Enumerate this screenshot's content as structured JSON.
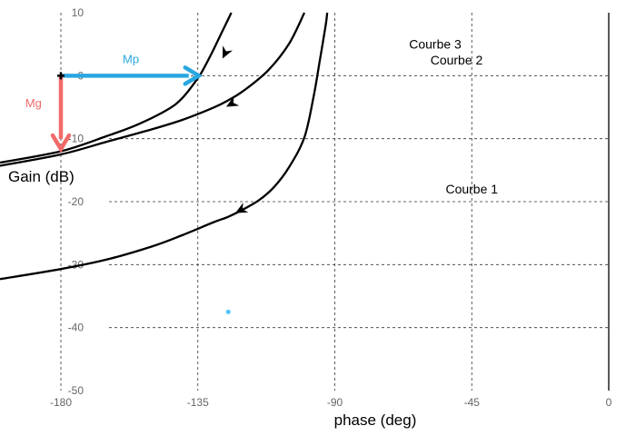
{
  "chart_data": {
    "type": "line",
    "title": "",
    "xlabel": "phase (deg)",
    "ylabel": "Gain (dB)",
    "xlim": [
      -200,
      0
    ],
    "ylim": [
      -50,
      10
    ],
    "x_ticks": [
      -180,
      -135,
      -90,
      -45,
      0
    ],
    "x_tick_labels": [
      "-180",
      "-135",
      "-90",
      "-45",
      "0"
    ],
    "y_ticks": [
      10,
      0,
      -10,
      -20,
      -30,
      -40,
      -50
    ],
    "y_tick_labels": [
      "10",
      "0",
      "-10",
      "-20",
      "-30",
      "-40",
      "-50"
    ],
    "grid": "dashed",
    "series": [
      {
        "name": "Courbe 1",
        "label_at": [
          -45,
          -18
        ],
        "color": "#000000",
        "arrow_at": [
          -122,
          -21.7
        ],
        "points": [
          [
            -200,
            -32.3
          ],
          [
            -180,
            -30.7
          ],
          [
            -165,
            -29.2
          ],
          [
            -150,
            -27.1
          ],
          [
            -140,
            -25.3
          ],
          [
            -130,
            -23.3
          ],
          [
            -125,
            -22.4
          ],
          [
            -120,
            -21.2
          ],
          [
            -115,
            -19.8
          ],
          [
            -110,
            -17.7
          ],
          [
            -105,
            -14.5
          ],
          [
            -100,
            -9.8
          ],
          [
            -97,
            -3.4
          ],
          [
            -95,
            2.2
          ],
          [
            -93,
            8.0
          ],
          [
            -92.5,
            10
          ]
        ]
      },
      {
        "name": "Courbe 2",
        "label_at": [
          -50,
          2.5
        ],
        "color": "#000000",
        "arrow_at": [
          -125,
          -4.8
        ],
        "points": [
          [
            -200,
            -14.3
          ],
          [
            -180,
            -12.5
          ],
          [
            -165,
            -10.5
          ],
          [
            -150,
            -8.5
          ],
          [
            -140,
            -7.0
          ],
          [
            -130,
            -5.1
          ],
          [
            -125,
            -3.9
          ],
          [
            -120,
            -2.4
          ],
          [
            -112,
            0.8
          ],
          [
            -105,
            5.1
          ],
          [
            -100,
            10
          ]
        ]
      },
      {
        "name": "Courbe 3",
        "label_at": [
          -57,
          5
        ],
        "color": "#000000",
        "arrow_at": [
          -127,
          3.2
        ],
        "points": [
          [
            -200,
            -13.8
          ],
          [
            -180,
            -12.0
          ],
          [
            -165,
            -9.6
          ],
          [
            -155,
            -7.8
          ],
          [
            -145,
            -5.4
          ],
          [
            -140,
            -3.5
          ],
          [
            -135,
            -0.4
          ],
          [
            -133,
            1.2
          ],
          [
            -130,
            4.0
          ],
          [
            -127,
            7.0
          ],
          [
            -124,
            10
          ]
        ]
      }
    ],
    "annotations": [
      {
        "name": "Mp",
        "color": "#29a7e1",
        "from": [
          -180,
          0
        ],
        "to": [
          -135,
          0
        ],
        "label_at": [
          -157,
          2
        ]
      },
      {
        "name": "Mg",
        "color": "#f26a6a",
        "from": [
          -180,
          0
        ],
        "to": [
          -180,
          -11.5
        ],
        "label_at": [
          -189,
          -5
        ]
      }
    ],
    "marker": {
      "x": -180,
      "y": 0,
      "color": "#000000"
    },
    "dot": {
      "x": -125,
      "y": -37.5,
      "color": "#4fc3f7"
    }
  }
}
